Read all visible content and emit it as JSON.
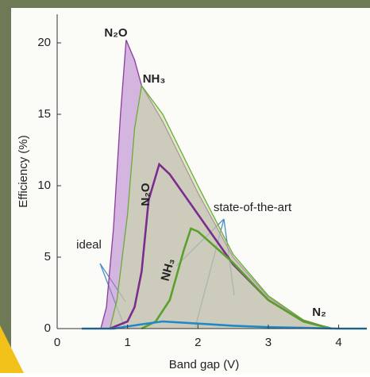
{
  "chart_data": {
    "type": "line",
    "x_label": "Band gap (V)",
    "y_label": "Efficiency (%)",
    "xlim": [
      0,
      4.4
    ],
    "ylim": [
      0,
      22
    ],
    "xticks": [
      0,
      1,
      2,
      3,
      4
    ],
    "yticks": [
      0,
      5,
      10,
      15,
      20
    ],
    "annotations": [
      "ideal",
      "state-of-the-art"
    ],
    "series": [
      {
        "name": "N₂O",
        "color": "#8e3a9d",
        "fill_color": "#b37ccc",
        "fill": true,
        "x": [
          0.62,
          0.7,
          0.8,
          0.9,
          0.98,
          1.1,
          1.2,
          1.5,
          2.0,
          2.5,
          3.0,
          3.5,
          3.9
        ],
        "values": [
          0,
          1.5,
          7,
          15,
          20.2,
          18.8,
          17,
          14.5,
          9.5,
          5,
          2.2,
          0.6,
          0
        ]
      },
      {
        "name": "NH₃",
        "color": "#6aab3a",
        "fill_color": "#c9df9e",
        "fill": true,
        "x": [
          0.75,
          0.85,
          1.0,
          1.1,
          1.2,
          1.5,
          2.0,
          2.5,
          3.0,
          3.5,
          3.9
        ],
        "values": [
          0,
          2,
          8,
          14,
          17,
          15,
          10,
          5.2,
          2.3,
          0.6,
          0
        ]
      },
      {
        "name": "N₂O",
        "color": "#7b2c8f",
        "fill": false,
        "x": [
          0.75,
          1.0,
          1.1,
          1.2,
          1.3,
          1.45,
          1.6,
          2.0,
          2.5,
          3.0,
          3.5,
          3.9
        ],
        "values": [
          0,
          0.5,
          1.5,
          4,
          9,
          11.5,
          10.8,
          8,
          4.5,
          2,
          0.5,
          0
        ]
      },
      {
        "name": "NH₃",
        "color": "#5aa02c",
        "fill": false,
        "x": [
          1.2,
          1.4,
          1.6,
          1.8,
          1.9,
          2.0,
          2.5,
          3.0,
          3.5,
          3.9
        ],
        "values": [
          0,
          0.5,
          2,
          5.5,
          7,
          6.8,
          4.6,
          2,
          0.5,
          0
        ]
      },
      {
        "name": "N₂",
        "color": "#1f88c8",
        "fill": false,
        "x": [
          0.35,
          0.8,
          1.2,
          1.5,
          2.0,
          2.5,
          3.0,
          3.5,
          4.0,
          4.4
        ],
        "values": [
          0,
          0,
          0.3,
          0.5,
          0.35,
          0.2,
          0.1,
          0.05,
          0,
          0
        ]
      }
    ]
  }
}
